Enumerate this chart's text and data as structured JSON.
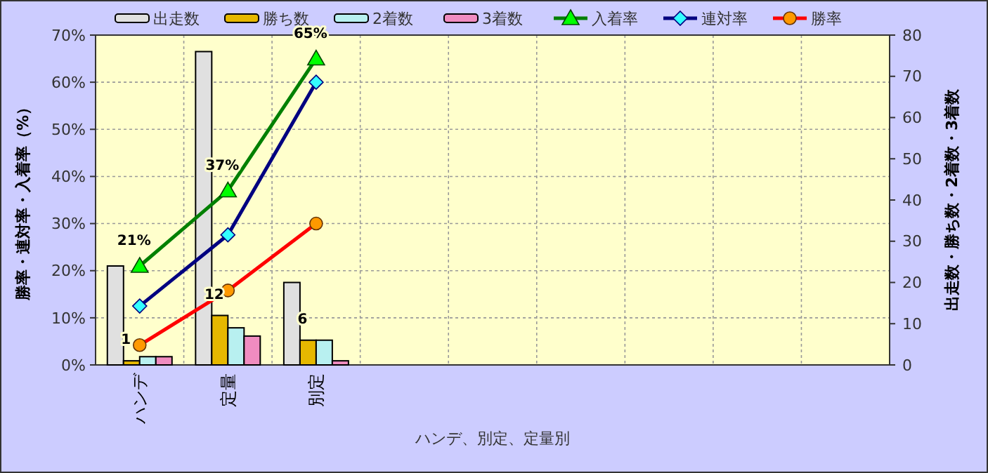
{
  "chart_data": {
    "type": "bar",
    "xlabel": "ハンデ、別定、定量別",
    "ylabel": "勝率・連対率・入着率（%）",
    "y2label": "出走数・勝ち数・2着数・3着数",
    "categories": [
      "ハンデ",
      "定量",
      "別定",
      null,
      null,
      null,
      null,
      null,
      null
    ],
    "series": [
      {
        "name": "出走数",
        "axis": "y2",
        "color": "#e0e0e0",
        "values": [
          24,
          76,
          20,
          null,
          null,
          null,
          null,
          null,
          null
        ]
      },
      {
        "name": "勝ち数",
        "axis": "y2",
        "color": "#e6b800",
        "values": [
          1,
          12,
          6,
          null,
          null,
          null,
          null,
          null,
          null
        ],
        "value_labels": [
          "1",
          "12",
          "6",
          null,
          null,
          null,
          null,
          null,
          null
        ]
      },
      {
        "name": "2着数",
        "axis": "y2",
        "color": "#b8f0f0",
        "values": [
          2,
          9,
          6,
          null,
          null,
          null,
          null,
          null,
          null
        ]
      },
      {
        "name": "3着数",
        "axis": "y2",
        "color": "#f08cc0",
        "values": [
          2,
          7,
          1,
          null,
          null,
          null,
          null,
          null,
          null
        ]
      },
      {
        "name": "入着率",
        "type": "line",
        "color": "#008000",
        "marker": "triangle",
        "values": [
          21,
          37,
          65,
          null,
          null,
          null,
          null,
          null,
          null
        ],
        "value_labels": [
          "21%",
          "37%",
          "65%",
          null,
          null,
          null,
          null,
          null,
          null
        ]
      },
      {
        "name": "連対率",
        "type": "line",
        "color": "#000080",
        "marker": "diamond",
        "values": [
          12.5,
          27.6,
          60,
          null,
          null,
          null,
          null,
          null,
          null
        ]
      },
      {
        "name": "勝率",
        "type": "line",
        "color": "#ff0000",
        "marker": "circle",
        "values": [
          4.2,
          15.8,
          30,
          null,
          null,
          null,
          null,
          null,
          null
        ]
      }
    ],
    "ylim": [
      0,
      70
    ],
    "yticks": [
      {
        "value": 0,
        "label": "0%"
      },
      {
        "value": 10,
        "label": "10%"
      },
      {
        "value": 20,
        "label": "20%"
      },
      {
        "value": 30,
        "label": "30%"
      },
      {
        "value": 40,
        "label": "40%"
      },
      {
        "value": 50,
        "label": "50%"
      },
      {
        "value": 60,
        "label": "60%"
      },
      {
        "value": 70,
        "label": "70%"
      }
    ],
    "y2lim": [
      0,
      80
    ],
    "y2ticks": [
      0,
      10,
      20,
      30,
      40,
      50,
      60,
      70,
      80
    ],
    "grid": true,
    "legend": "top"
  }
}
